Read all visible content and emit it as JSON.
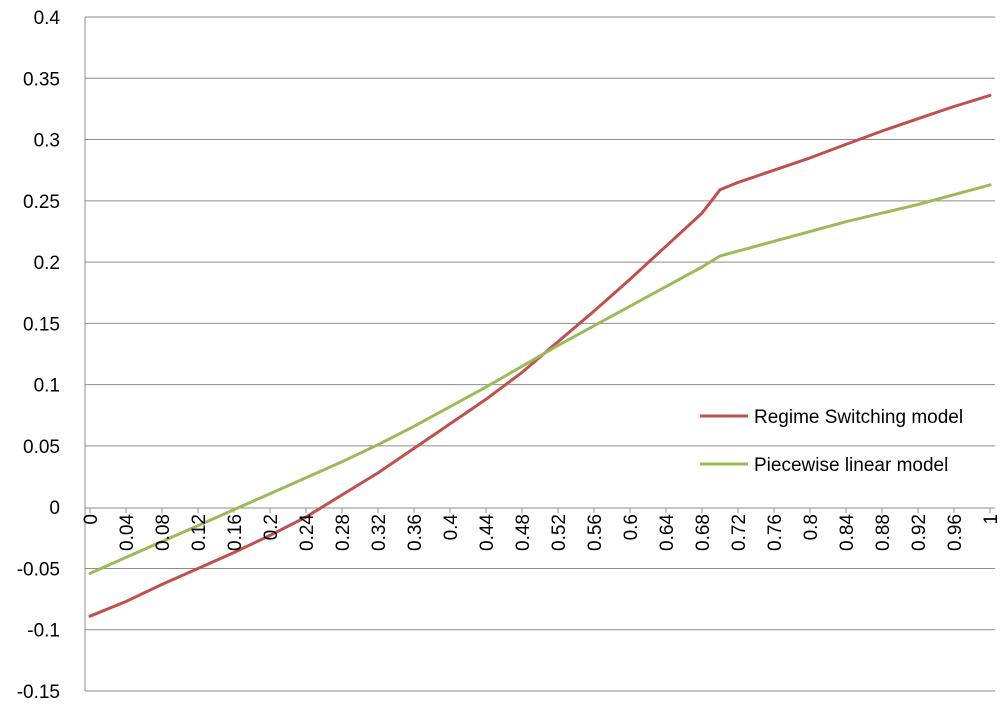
{
  "chart_data": {
    "type": "line",
    "title": "",
    "xlabel": "",
    "ylabel": "",
    "ylim": [
      -0.15,
      0.4
    ],
    "xlim": [
      0,
      1
    ],
    "y_ticks": [
      -0.15,
      -0.1,
      -0.05,
      0,
      0.05,
      0.1,
      0.15,
      0.2,
      0.25,
      0.3,
      0.35,
      0.4
    ],
    "y_tick_labels": [
      "-0.15",
      "-0.1",
      "-0.05",
      "0",
      "0.05",
      "0.1",
      "0.15",
      "0.2",
      "0.25",
      "0.3",
      "0.35",
      "0.4"
    ],
    "x_ticks": [
      0,
      0.04,
      0.08,
      0.12,
      0.16,
      0.2,
      0.24,
      0.28,
      0.32,
      0.36,
      0.4,
      0.44,
      0.48,
      0.52,
      0.56,
      0.6,
      0.64,
      0.68,
      0.72,
      0.76,
      0.8,
      0.84,
      0.88,
      0.92,
      0.96,
      1
    ],
    "x_tick_labels": [
      "0",
      "0.04",
      "0.08",
      "0.12",
      "0.16",
      "0.2",
      "0.24",
      "0.28",
      "0.32",
      "0.36",
      "0.4",
      "0.44",
      "0.48",
      "0.52",
      "0.56",
      "0.6",
      "0.64",
      "0.68",
      "0.72",
      "0.76",
      "0.8",
      "0.84",
      "0.88",
      "0.92",
      "0.96",
      "1"
    ],
    "grid": "horizontal",
    "legend_position": "right",
    "series": [
      {
        "name": "Regime Switching model",
        "color": "#c0504d",
        "x": [
          0,
          0.04,
          0.08,
          0.12,
          0.16,
          0.2,
          0.24,
          0.28,
          0.32,
          0.36,
          0.4,
          0.44,
          0.48,
          0.52,
          0.56,
          0.6,
          0.64,
          0.68,
          0.7,
          0.72,
          0.76,
          0.8,
          0.84,
          0.88,
          0.92,
          0.96,
          1
        ],
        "y": [
          -0.089,
          -0.077,
          -0.063,
          -0.05,
          -0.037,
          -0.023,
          -0.008,
          0.01,
          0.028,
          0.048,
          0.068,
          0.088,
          0.11,
          0.135,
          0.16,
          0.186,
          0.213,
          0.24,
          0.259,
          0.265,
          0.275,
          0.285,
          0.296,
          0.307,
          0.317,
          0.327,
          0.336
        ]
      },
      {
        "name": "Piecewise linear model",
        "color": "#9bbb59",
        "x": [
          0,
          0.04,
          0.08,
          0.12,
          0.16,
          0.2,
          0.24,
          0.28,
          0.32,
          0.36,
          0.4,
          0.44,
          0.48,
          0.52,
          0.56,
          0.6,
          0.64,
          0.68,
          0.7,
          0.72,
          0.76,
          0.8,
          0.84,
          0.88,
          0.92,
          0.96,
          1
        ],
        "y": [
          -0.054,
          -0.041,
          -0.028,
          -0.015,
          -0.002,
          0.011,
          0.024,
          0.037,
          0.051,
          0.066,
          0.082,
          0.098,
          0.115,
          0.132,
          0.148,
          0.164,
          0.18,
          0.196,
          0.205,
          0.209,
          0.217,
          0.225,
          0.233,
          0.24,
          0.247,
          0.255,
          0.263
        ]
      }
    ]
  }
}
